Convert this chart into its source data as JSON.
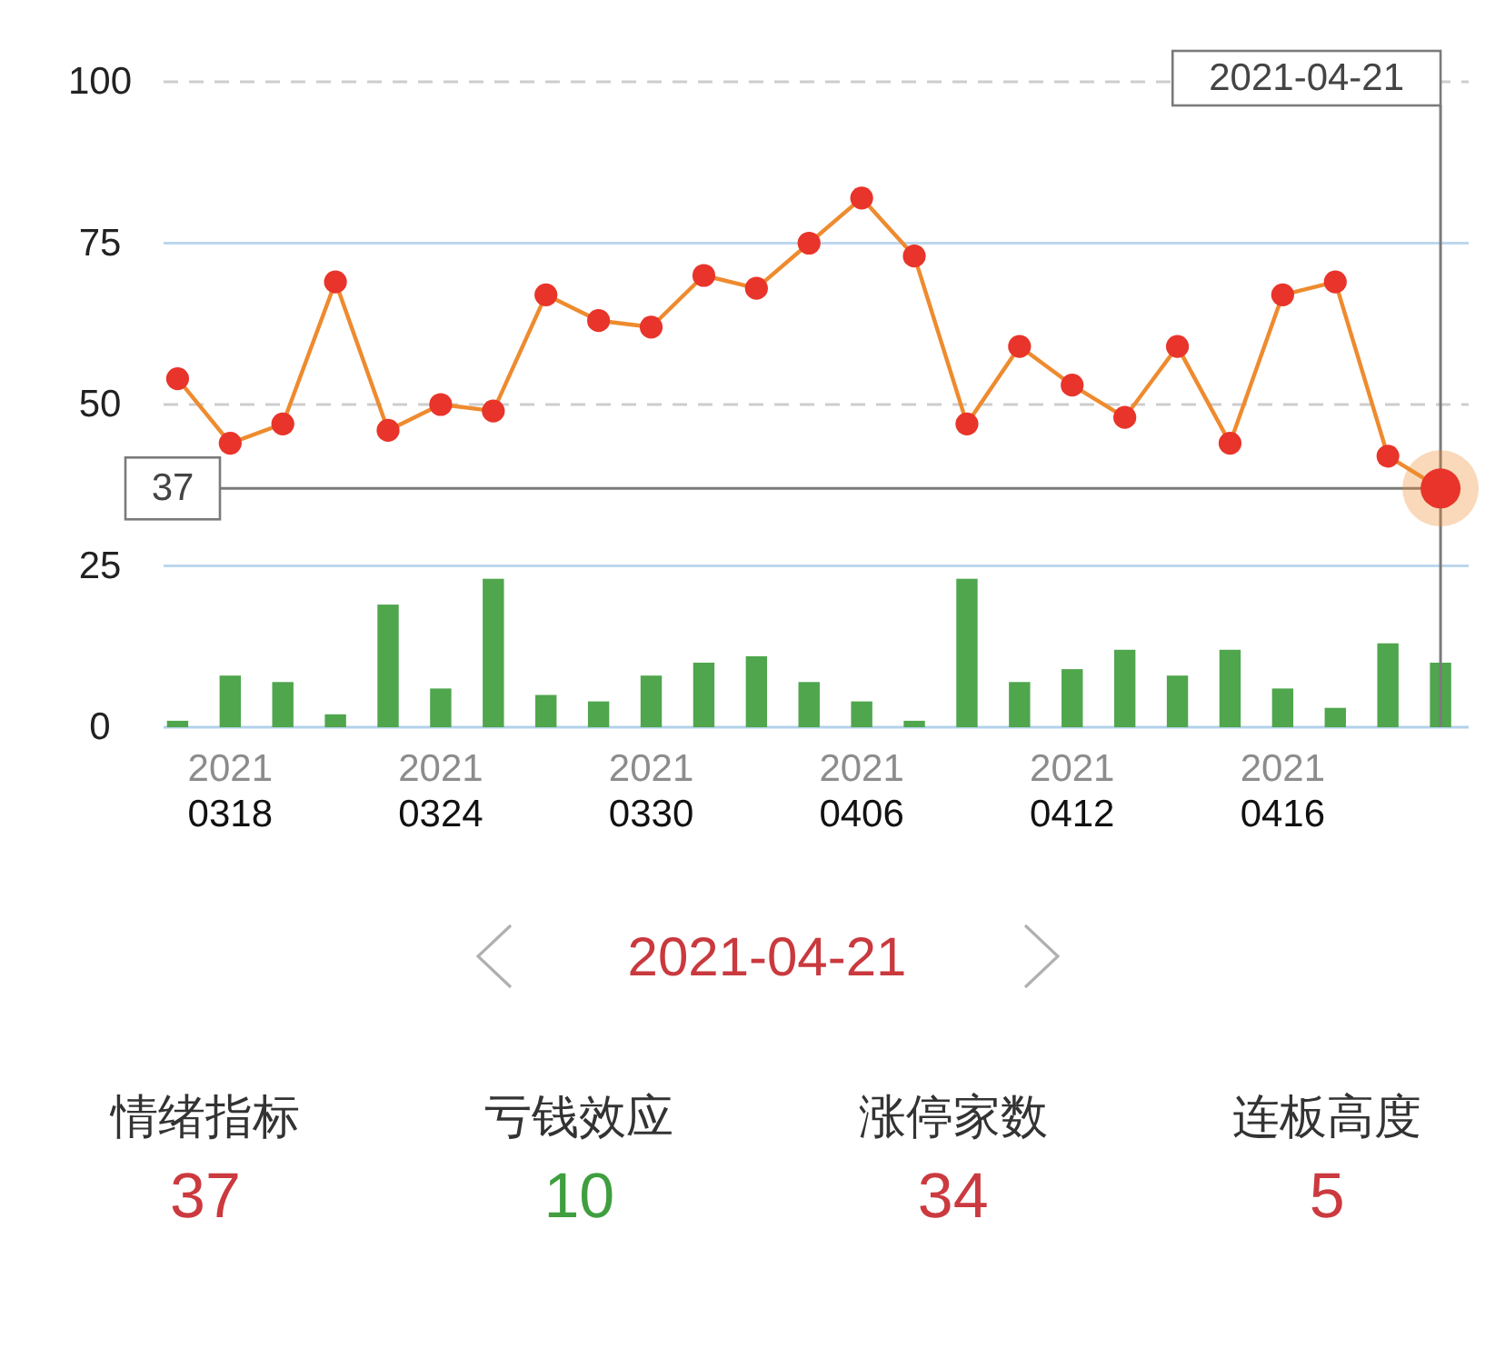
{
  "chart_data": [
    {
      "type": "line",
      "categories": [
        null,
        "2021\n0318",
        null,
        null,
        null,
        "2021\n0324",
        null,
        null,
        null,
        "2021\n0330",
        null,
        null,
        null,
        "2021\n0406",
        null,
        null,
        null,
        "2021\n0412",
        null,
        null,
        null,
        "2021\n0416",
        null,
        null,
        null
      ],
      "series": [
        {
          "type": "line",
          "color": "#ee8b2f",
          "colors": [
            "#e8342a",
            "#e8342a",
            "#e8342a",
            "#e8342a",
            "#e8342a",
            "#e8342a",
            "#e8342a",
            "#e8342a",
            "#e8342a",
            "#e8342a",
            "#e8342a",
            "#e8342a",
            "#e8342a",
            "#e8342a",
            "#e8342a",
            "#e8342a",
            "#e8342a",
            "#e8342a",
            "#e8342a",
            "#e8342a",
            "#e8342a",
            "#e8342a",
            "#e8342a",
            "#e8342a",
            "#e8342a"
          ],
          "values": [
            54,
            44,
            47,
            69,
            46,
            50,
            49,
            67,
            63,
            62,
            70,
            68,
            75,
            82,
            73,
            47,
            59,
            53,
            48,
            59,
            44,
            67,
            69,
            42,
            37
          ]
        },
        {
          "type": "bar",
          "color": "#4fa64d",
          "values": [
            1,
            8,
            7,
            2,
            19,
            6,
            23,
            5,
            4,
            8,
            10,
            11,
            7,
            4,
            1,
            23,
            7,
            9,
            12,
            8,
            12,
            6,
            3,
            13,
            10
          ]
        }
      ],
      "ylim": [
        0,
        100
      ],
      "yticks": [
        0,
        25,
        50,
        75,
        100
      ],
      "grid": "y",
      "marker": "circle",
      "ref_lines": [
        {
          "axis": "y",
          "value": 37,
          "label": "37",
          "color": "#7a7a7a"
        },
        {
          "axis": "y",
          "value": 50,
          "color": "#cdcdcd",
          "line_style": "dashed"
        },
        {
          "axis": "y",
          "value": 100,
          "color": "#cdcdcd",
          "line_style": "dashed"
        }
      ],
      "annotations": [
        "2021-04-21"
      ]
    },
    {
      "type": "other",
      "title": "2021-04-21",
      "categories": [
        "情绪指标",
        "亏钱效应",
        "涨停家数",
        "连板高度"
      ],
      "values": [
        37,
        10,
        34,
        5
      ],
      "data_labels": true,
      "colors": [
        "#cb3a3f",
        "#3f9e3f",
        "#cb3a3f",
        "#cb3a3f"
      ]
    }
  ]
}
